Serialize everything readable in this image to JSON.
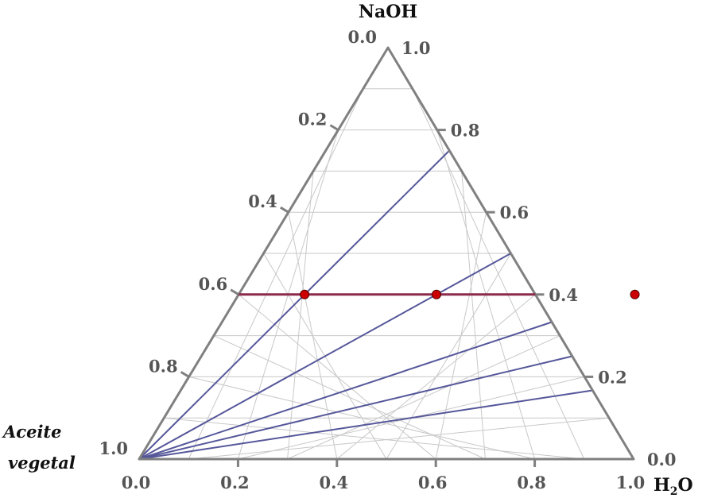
{
  "diagram": {
    "type": "ternary",
    "vertices": {
      "top": "NaOH",
      "left_line1": "Aceite",
      "left_line2": "vegetal",
      "right_base": "H",
      "right_sub": "2",
      "right_tail": "O"
    },
    "left_edge_ticks": [
      "0.0",
      "0.2",
      "0.4",
      "0.6",
      "0.8",
      "1.0"
    ],
    "right_edge_ticks": [
      "1.0",
      "0.8",
      "0.6",
      "0.4",
      "0.2",
      "0.0"
    ],
    "bottom_edge_ticks": [
      "0.0",
      "0.2",
      "0.4",
      "0.6",
      "0.8",
      "1.0"
    ],
    "grid_step": 0.1,
    "tie_line": {
      "naoh": 0.4,
      "color": "#8b2a4a"
    },
    "rays_end_naoh": [
      0.75,
      0.5,
      0.333,
      0.25,
      0.167
    ],
    "ray_color": "#55579a",
    "points_naoh_fraction": [
      0.75,
      0.5,
      0.333
    ],
    "point_color": "#cc0000",
    "frame_color": "#808080",
    "grid_color": "#c8c8c8"
  }
}
